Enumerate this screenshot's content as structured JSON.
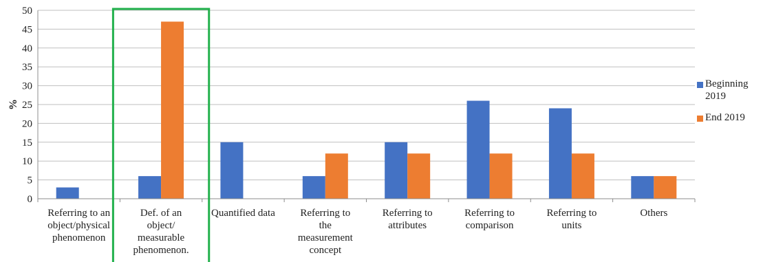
{
  "chart_data": {
    "type": "bar",
    "title": "",
    "xlabel": "",
    "ylabel": "%",
    "ylim": [
      0,
      50
    ],
    "yticks": [
      0,
      5,
      10,
      15,
      20,
      25,
      30,
      35,
      40,
      45,
      50
    ],
    "grid": "horizontal",
    "legend_position": "right",
    "categories": [
      [
        "Referring to an",
        "object/physical",
        "phenomenon"
      ],
      [
        "Def. of an",
        "object/",
        "measurable",
        "phenomenon."
      ],
      [
        "Quantified data"
      ],
      [
        "Referring to",
        "the",
        "measurement",
        "concept"
      ],
      [
        "Referring to",
        "attributes"
      ],
      [
        "Referring to",
        "comparison"
      ],
      [
        "Referring to",
        "units"
      ],
      [
        "Others"
      ]
    ],
    "series": [
      {
        "name": [
          "Beginning",
          "2019"
        ],
        "color": "#4472C4",
        "values": [
          3,
          6,
          15,
          6,
          15,
          26,
          24,
          6
        ]
      },
      {
        "name": [
          "End 2019"
        ],
        "color": "#ED7D31",
        "values": [
          0,
          47,
          0,
          12,
          12,
          12,
          12,
          6
        ]
      }
    ],
    "highlight": {
      "category_index": 1,
      "color": "#22B14C"
    }
  }
}
